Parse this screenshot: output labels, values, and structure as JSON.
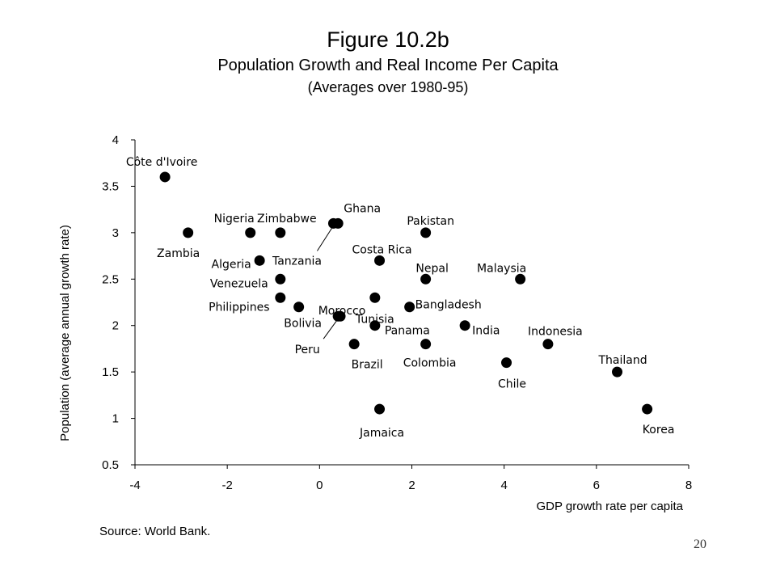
{
  "header": {
    "title": "Figure 10.2b",
    "subtitle": "Population Growth and Real Income Per Capita",
    "note": "(Averages over 1980-95)"
  },
  "chart_data": {
    "type": "scatter",
    "xlabel": "GDP growth rate per capita",
    "ylabel": "Population (average annual growth rate)",
    "xlim": [
      -4,
      8
    ],
    "ylim": [
      0.5,
      4
    ],
    "xticks": [
      "-4",
      "-2",
      "0",
      "2",
      "4",
      "6",
      "8"
    ],
    "yticks": [
      "0.5",
      "1",
      "1.5",
      "2",
      "2.5",
      "3",
      "3.5",
      "4"
    ],
    "grid": false,
    "points": [
      {
        "label": "Côte d'Ivoire",
        "x": -3.35,
        "y": 3.6
      },
      {
        "label": "Zambia",
        "x": -2.85,
        "y": 3.0
      },
      {
        "label": "Nigeria",
        "x": -1.5,
        "y": 3.0
      },
      {
        "label": "Zimbabwe",
        "x": -0.85,
        "y": 3.0
      },
      {
        "label": "Algeria",
        "x": -1.3,
        "y": 2.7
      },
      {
        "label": "Venezuela",
        "x": -0.85,
        "y": 2.5
      },
      {
        "label": "Philippines",
        "x": -0.85,
        "y": 2.3
      },
      {
        "label": "Bolivia",
        "x": -0.45,
        "y": 2.2
      },
      {
        "label": "Ghana",
        "x": 0.4,
        "y": 3.1
      },
      {
        "label": "Tanzania",
        "x": 0.3,
        "y": 3.1
      },
      {
        "label": "Morocco",
        "x": 0.45,
        "y": 2.1
      },
      {
        "label": "Peru",
        "x": 0.4,
        "y": 2.1
      },
      {
        "label": "Costa Rica",
        "x": 1.3,
        "y": 2.7
      },
      {
        "label": "Tunisia",
        "x": 1.2,
        "y": 2.3
      },
      {
        "label": "Panama",
        "x": 1.2,
        "y": 2.0
      },
      {
        "label": "Brazil",
        "x": 0.75,
        "y": 1.8
      },
      {
        "label": "Jamaica",
        "x": 1.3,
        "y": 1.1
      },
      {
        "label": "Pakistan",
        "x": 2.3,
        "y": 3.0
      },
      {
        "label": "Nepal",
        "x": 2.3,
        "y": 2.5
      },
      {
        "label": "Bangladesh",
        "x": 1.95,
        "y": 2.2
      },
      {
        "label": "Colombia",
        "x": 2.3,
        "y": 1.8
      },
      {
        "label": "India",
        "x": 3.15,
        "y": 2.0
      },
      {
        "label": "Malaysia",
        "x": 4.35,
        "y": 2.5
      },
      {
        "label": "Chile",
        "x": 4.05,
        "y": 1.6
      },
      {
        "label": "Indonesia",
        "x": 4.95,
        "y": 1.8
      },
      {
        "label": "Thailand",
        "x": 6.45,
        "y": 1.5
      },
      {
        "label": "Korea",
        "x": 7.1,
        "y": 1.1
      }
    ]
  },
  "source": "Source: World Bank.",
  "page_number": "20"
}
